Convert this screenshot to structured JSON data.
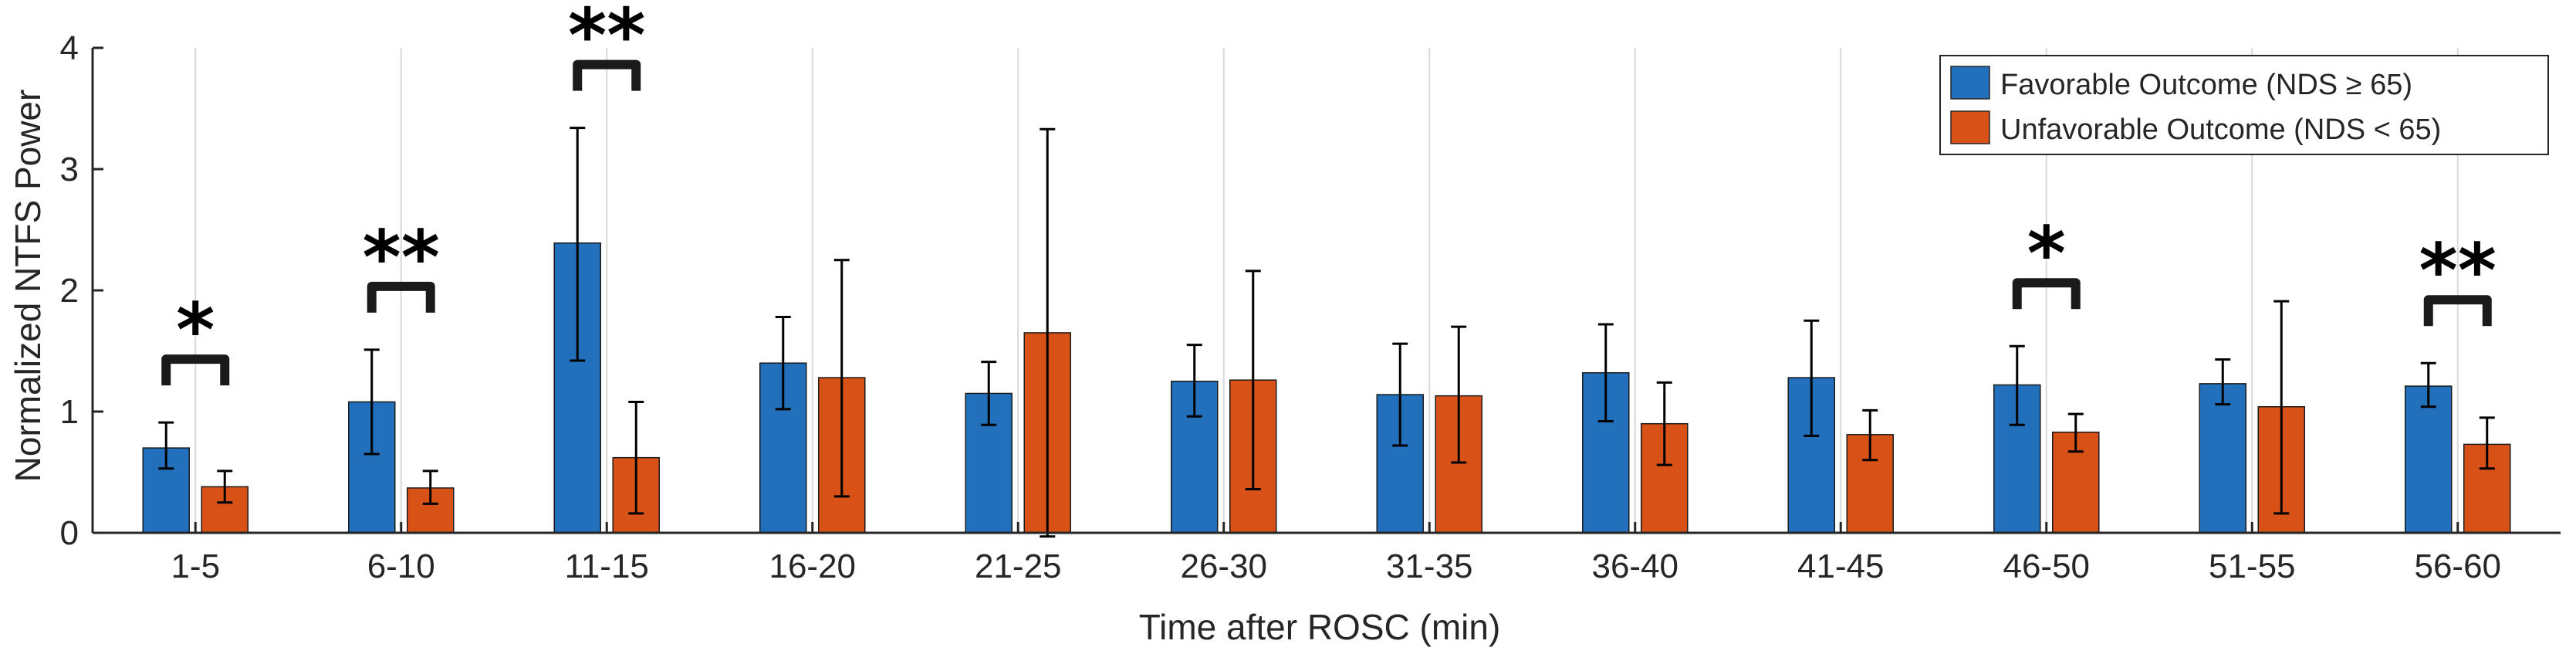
{
  "colors": {
    "favorable": "#2270BC",
    "unfavorable": "#D85218",
    "axis": "#262626",
    "grid": "#d9d9d9"
  },
  "chart_data": {
    "type": "bar",
    "title": "",
    "xlabel": "Time after ROSC (min)",
    "ylabel": "Normalized NTFS Power",
    "ylim": [
      0,
      4
    ],
    "yticks": [
      "0",
      "1",
      "2",
      "3",
      "4"
    ],
    "grid": "vertical",
    "legend_position": "top-right",
    "categories": [
      "1-5",
      "6-10",
      "11-15",
      "16-20",
      "21-25",
      "26-30",
      "31-35",
      "36-40",
      "41-45",
      "46-50",
      "51-55",
      "56-60"
    ],
    "series": [
      {
        "name": "Favorable Outcome (NDS ≥ 65)",
        "values": [
          0.7,
          1.08,
          2.39,
          1.4,
          1.15,
          1.25,
          1.14,
          1.32,
          1.28,
          1.22,
          1.23,
          1.21
        ],
        "err_low": [
          0.53,
          0.65,
          1.42,
          1.02,
          0.89,
          0.96,
          0.72,
          0.92,
          0.8,
          0.89,
          1.06,
          1.04
        ],
        "err_high": [
          0.91,
          1.51,
          3.34,
          1.78,
          1.41,
          1.55,
          1.56,
          1.72,
          1.75,
          1.54,
          1.43,
          1.4
        ]
      },
      {
        "name": "Unfavorable Outcome (NDS < 65)",
        "values": [
          0.38,
          0.37,
          0.62,
          1.28,
          1.65,
          1.26,
          1.13,
          0.9,
          0.81,
          0.83,
          1.04,
          0.73
        ],
        "err_low": [
          0.25,
          0.24,
          0.16,
          0.3,
          -0.03,
          0.36,
          0.58,
          0.56,
          0.6,
          0.67,
          0.16,
          0.53
        ],
        "err_high": [
          0.51,
          0.51,
          1.08,
          2.25,
          3.33,
          2.16,
          1.7,
          1.24,
          1.01,
          0.98,
          1.91,
          0.95
        ]
      }
    ],
    "significance": [
      {
        "category": "1-5",
        "label": "*"
      },
      {
        "category": "6-10",
        "label": "**"
      },
      {
        "category": "11-15",
        "label": "**"
      },
      {
        "category": "46-50",
        "label": "*"
      },
      {
        "category": "56-60",
        "label": "**"
      }
    ]
  }
}
